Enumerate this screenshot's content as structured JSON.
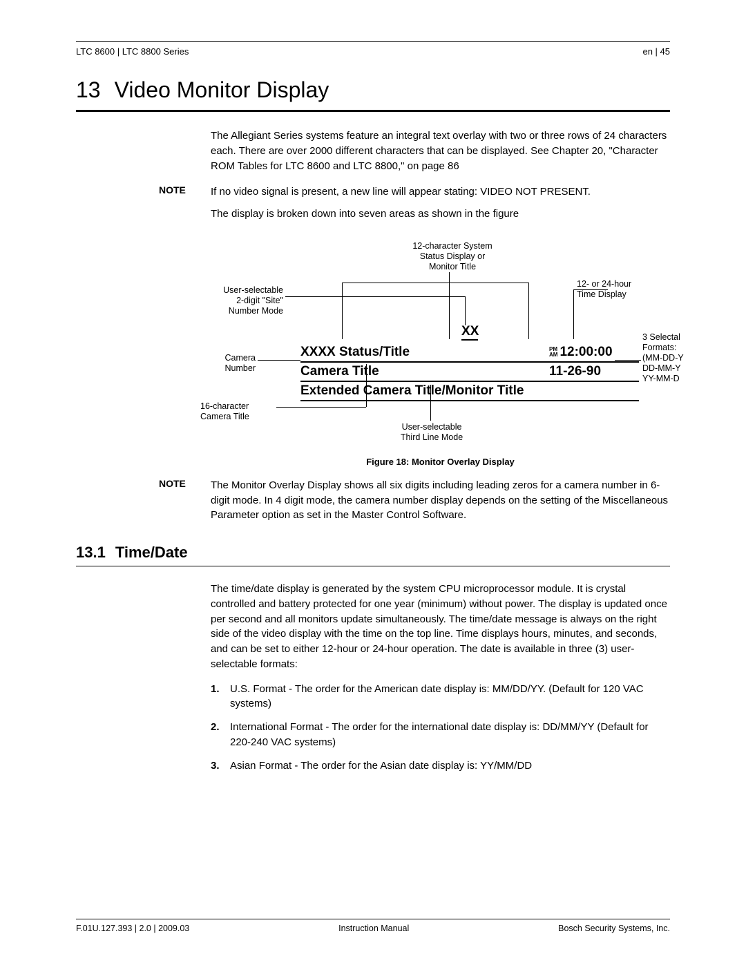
{
  "header": {
    "left": "LTC 8600 | LTC 8800 Series",
    "right": "en | 45"
  },
  "chapter": {
    "number": "13",
    "title": "Video Monitor Display"
  },
  "intro": "The Allegiant Series systems feature an integral text overlay with two or three rows of 24 characters each. There are over 2000 different characters that can be displayed. See Chapter 20, \"Character ROM Tables for LTC 8600 and LTC 8800,\" on page 86",
  "note1": {
    "label": "NOTE",
    "text": "If no video signal is present, a new line will appear stating: VIDEO NOT PRESENT."
  },
  "para_after": "The display is broken down into seven areas as shown in the figure",
  "figure": {
    "annotations": {
      "system_status": "12-character System\nStatus Display or\nMonitor Title",
      "time_display": "12- or 24-hour\nTime Display",
      "site_number": "User-selectable\n2-digit \"Site\"\nNumber Mode",
      "date_formats_label": "3 Selectal\nFormats:",
      "date_formats_list": "(MM-DD-Y\nDD-MM-Y\nYY-MM-D",
      "camera_number": "Camera\nNumber",
      "camera_title": "16-character\nCamera Title",
      "third_line": "User-selectable\nThird Line Mode"
    },
    "overlay": {
      "xx": "XX",
      "row1_left": "XXXX Status/Title",
      "pm_top": "PM",
      "pm_bot": "AM",
      "row1_right": "12:00:00",
      "row2_left": "Camera Title",
      "row2_right": "11-26-90",
      "row3": "Extended Camera Title/Monitor Title"
    },
    "caption": "Figure 18: Monitor Overlay Display",
    "colors": {
      "line": "#000000",
      "text": "#000000"
    }
  },
  "note2": {
    "label": "NOTE",
    "text": "The Monitor Overlay Display shows all six digits including leading zeros for a camera number in 6-digit mode. In 4 digit mode, the camera number display depends on the setting of the Miscellaneous Parameter option as set in the Master Control Software."
  },
  "section": {
    "number": "13.1",
    "title": "Time/Date",
    "intro": "The time/date display is generated by the system CPU microprocessor module. It is crystal controlled and battery protected for one year (minimum) without power. The display is updated once per second and all monitors update simultaneously. The time/date message is always on the right side of the video display with the time on the top line. Time displays hours, minutes, and seconds, and can be set to either 12-hour or 24-hour operation. The date is available in three (3) user-selectable formats:",
    "items": [
      {
        "n": "1.",
        "text": "U.S. Format - The order for the American date display is: MM/DD/YY. (Default for 120 VAC systems)"
      },
      {
        "n": "2.",
        "text": "International Format - The order for the international date display is: DD/MM/YY (Default for 220-240 VAC systems)"
      },
      {
        "n": "3.",
        "text": "Asian Format - The order for the Asian date display is: YY/MM/DD"
      }
    ]
  },
  "footer": {
    "left": "F.01U.127.393 | 2.0 | 2009.03",
    "center": "Instruction Manual",
    "right": "Bosch Security Systems, Inc."
  }
}
